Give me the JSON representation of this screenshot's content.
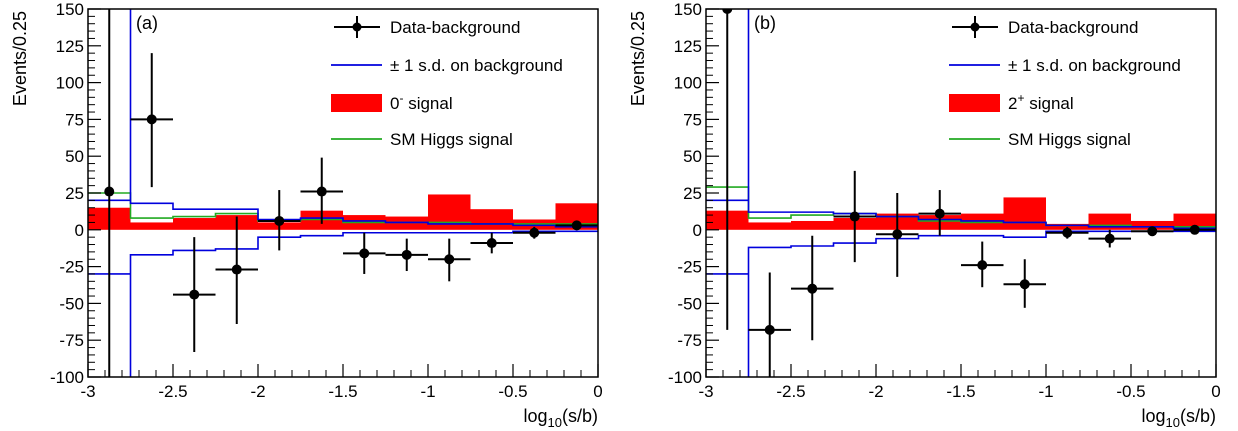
{
  "chart_data": [
    {
      "type": "histogram",
      "panel_label": "(a)",
      "xlabel": "log10(s/b)",
      "xlabel_main": "log",
      "xlabel_sub": "10",
      "xlabel_rest": "(s/b)",
      "ylabel": "Events/0.25",
      "xlim": [
        -3,
        0
      ],
      "ylim": [
        -100,
        150
      ],
      "xticks": [
        "-3",
        "-2.5",
        "-2",
        "-1.5",
        "-1",
        "-0.5",
        "0"
      ],
      "yticks": [
        "-100",
        "-75",
        "-50",
        "-25",
        "0",
        "25",
        "50",
        "75",
        "100",
        "125",
        "150"
      ],
      "legend_position": "top-right",
      "legend": [
        {
          "kind": "points",
          "label": "Data-background"
        },
        {
          "kind": "line",
          "color": "#0000dd",
          "label": "± 1 s.d. on background"
        },
        {
          "kind": "box",
          "color": "#ff0000",
          "label_main": "0",
          "label_sup": "-",
          "label_rest": " signal"
        },
        {
          "kind": "line",
          "color": "#22aa22",
          "label": "SM Higgs signal"
        }
      ],
      "bin_edges": [
        -3,
        -2.75,
        -2.5,
        -2.25,
        -2,
        -1.75,
        -1.5,
        -1.25,
        -1,
        -0.75,
        -0.5,
        -0.25,
        0
      ],
      "signal": [
        15,
        5,
        8,
        10,
        5,
        13,
        10,
        9,
        24,
        14,
        7,
        18
      ],
      "sm_higgs": [
        25,
        8,
        9,
        11,
        6,
        7,
        5,
        5,
        5,
        4,
        4,
        4
      ],
      "band_upper": [
        20,
        18,
        14,
        14,
        7,
        8,
        6,
        5,
        4,
        4,
        3,
        2
      ],
      "band_lower": [
        -30,
        -17,
        -14,
        -13,
        -5,
        -4,
        -2,
        -2,
        -2,
        -2,
        -1,
        -1
      ],
      "band_spike_top": 150,
      "band_spike_bottom": -100,
      "points": [
        {
          "x": -2.875,
          "y": 26,
          "ylo": -100,
          "yhi": 150,
          "xerr": 0
        },
        {
          "x": -2.625,
          "y": 75,
          "ylo": 29,
          "yhi": 120,
          "xerr": 0.125
        },
        {
          "x": -2.375,
          "y": -44,
          "ylo": -83,
          "yhi": -5,
          "xerr": 0.125
        },
        {
          "x": -2.125,
          "y": -27,
          "ylo": -64,
          "yhi": 9,
          "xerr": 0.125
        },
        {
          "x": -1.875,
          "y": 6,
          "ylo": -14,
          "yhi": 27,
          "xerr": 0.125
        },
        {
          "x": -1.625,
          "y": 26,
          "ylo": 4,
          "yhi": 49,
          "xerr": 0.125
        },
        {
          "x": -1.375,
          "y": -16,
          "ylo": -30,
          "yhi": -2,
          "xerr": 0.125
        },
        {
          "x": -1.125,
          "y": -17,
          "ylo": -28,
          "yhi": -6,
          "xerr": 0.125
        },
        {
          "x": -0.875,
          "y": -20,
          "ylo": -35,
          "yhi": -6,
          "xerr": 0.125
        },
        {
          "x": -0.625,
          "y": -9,
          "ylo": -16,
          "yhi": -2,
          "xerr": 0.125
        },
        {
          "x": -0.375,
          "y": -2,
          "ylo": -6,
          "yhi": 2,
          "xerr": 0.125
        },
        {
          "x": -0.125,
          "y": 3,
          "ylo": 0,
          "yhi": 6,
          "xerr": 0.125
        }
      ]
    },
    {
      "type": "histogram",
      "panel_label": "(b)",
      "xlabel": "log10(s/b)",
      "xlabel_main": "log",
      "xlabel_sub": "10",
      "xlabel_rest": "(s/b)",
      "ylabel": "Events/0.25",
      "xlim": [
        -3,
        0
      ],
      "ylim": [
        -100,
        150
      ],
      "xticks": [
        "-3",
        "-2.5",
        "-2",
        "-1.5",
        "-1",
        "-0.5",
        "0"
      ],
      "yticks": [
        "-100",
        "-75",
        "-50",
        "-25",
        "0",
        "25",
        "50",
        "75",
        "100",
        "125",
        "150"
      ],
      "legend_position": "top-right",
      "legend": [
        {
          "kind": "points",
          "label": "Data-background"
        },
        {
          "kind": "line",
          "color": "#0000dd",
          "label": "± 1 s.d. on background"
        },
        {
          "kind": "box",
          "color": "#ff0000",
          "label_main": "2",
          "label_sup": "+",
          "label_rest": " signal"
        },
        {
          "kind": "line",
          "color": "#22aa22",
          "label": "SM Higgs signal"
        }
      ],
      "bin_edges": [
        -3,
        -2.75,
        -2.5,
        -2.25,
        -2,
        -1.75,
        -1.5,
        -1.25,
        -1,
        -0.75,
        -0.5,
        -0.25,
        0
      ],
      "signal": [
        13,
        5,
        6,
        8,
        11,
        10,
        11,
        22,
        4,
        11,
        6,
        11
      ],
      "sm_higgs": [
        29,
        8,
        10,
        11,
        9,
        6,
        5,
        5,
        3,
        3,
        2,
        2
      ],
      "band_upper": [
        20,
        12,
        12,
        11,
        9,
        7,
        6,
        5,
        3,
        2,
        2,
        1
      ],
      "band_lower": [
        -30,
        -12,
        -11,
        -9,
        -6,
        -4,
        -4,
        -5,
        -1,
        -1,
        -1,
        -1
      ],
      "band_spike_top": 150,
      "band_spike_bottom": -100,
      "points": [
        {
          "x": -2.875,
          "y": 150,
          "ylo": -68,
          "yhi": 150,
          "xerr": 0
        },
        {
          "x": -2.625,
          "y": -68,
          "ylo": -100,
          "yhi": -29,
          "xerr": 0.125
        },
        {
          "x": -2.375,
          "y": -40,
          "ylo": -75,
          "yhi": -4,
          "xerr": 0.125
        },
        {
          "x": -2.125,
          "y": 9,
          "ylo": -22,
          "yhi": 40,
          "xerr": 0.125
        },
        {
          "x": -1.875,
          "y": -3,
          "ylo": -32,
          "yhi": 25,
          "xerr": 0.125
        },
        {
          "x": -1.625,
          "y": 11,
          "ylo": -4,
          "yhi": 27,
          "xerr": 0.125
        },
        {
          "x": -1.375,
          "y": -24,
          "ylo": -39,
          "yhi": -8,
          "xerr": 0.125
        },
        {
          "x": -1.125,
          "y": -37,
          "ylo": -53,
          "yhi": -20,
          "xerr": 0.125
        },
        {
          "x": -0.875,
          "y": -2,
          "ylo": -6,
          "yhi": 2,
          "xerr": 0.125
        },
        {
          "x": -0.625,
          "y": -6,
          "ylo": -12,
          "yhi": 0,
          "xerr": 0.125
        },
        {
          "x": -0.375,
          "y": -1,
          "ylo": -4,
          "yhi": 2,
          "xerr": 0.125
        },
        {
          "x": -0.125,
          "y": 0,
          "ylo": -3,
          "yhi": 3,
          "xerr": 0.125
        }
      ]
    }
  ]
}
